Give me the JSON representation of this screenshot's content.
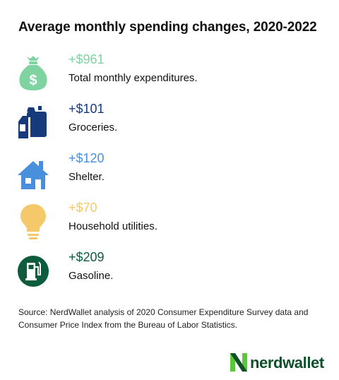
{
  "title": "Average monthly spending changes, 2020-2022",
  "items": [
    {
      "amount": "+$961",
      "label": "Total monthly expenditures.",
      "icon": "money-bag-icon",
      "color": "#7fd3a0"
    },
    {
      "amount": "+$101",
      "label": "Groceries.",
      "icon": "groceries-icon",
      "color": "#173b7a"
    },
    {
      "amount": "+$120",
      "label": "Shelter.",
      "icon": "house-icon",
      "color": "#4a8fdb"
    },
    {
      "amount": "+$70",
      "label": "Household utilities.",
      "icon": "light-bulb-icon",
      "color": "#f5c86a"
    },
    {
      "amount": "+$209",
      "label": "Gasoline.",
      "icon": "gas-pump-icon",
      "color": "#0c5c3d"
    }
  ],
  "source": "Source: NerdWallet analysis of 2020 Consumer Expenditure Survey data and Consumer Price Index from the Bureau of Labor Statistics.",
  "logo": {
    "text": "nerdwallet",
    "color": "#0f4f2a",
    "accent": "#5cc63b"
  }
}
